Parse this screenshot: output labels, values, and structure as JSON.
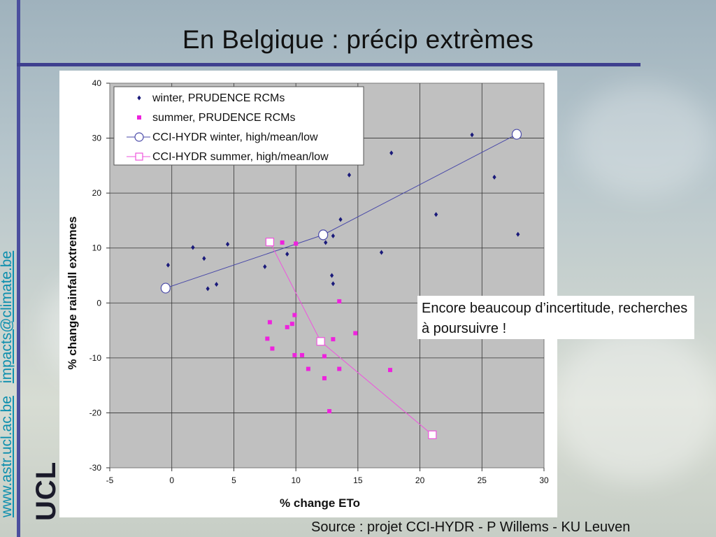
{
  "slide": {
    "title": "En Belgique : précip extrèmes",
    "side_link_1": "www.astr.ucl.ac.be",
    "side_link_2": "impacts@climate.be",
    "logo_text": "UCL",
    "note": "Encore beaucoup d’incertitude, recherches à poursuivre !",
    "source": "Source : projet CCI-HYDR - P Willems - KU Leuven"
  },
  "chart_data": {
    "type": "scatter",
    "xlabel": "% change ETo",
    "ylabel": "% change rainfall extremes",
    "xlim": [
      -5,
      30
    ],
    "ylim": [
      -30,
      40
    ],
    "xticks": [
      -5,
      0,
      5,
      10,
      15,
      20,
      25,
      30
    ],
    "yticks": [
      -30,
      -20,
      -10,
      0,
      10,
      20,
      30,
      40
    ],
    "grid": true,
    "legend_position": "top-left",
    "series": [
      {
        "name": "winter, PRUDENCE RCMs",
        "kind": "points",
        "marker": "diamond",
        "color": "#1a1a7a",
        "points": [
          [
            -0.3,
            6.9
          ],
          [
            1.7,
            10.1
          ],
          [
            2.6,
            8.1
          ],
          [
            2.9,
            2.6
          ],
          [
            3.6,
            3.4
          ],
          [
            4.5,
            10.7
          ],
          [
            7.5,
            6.6
          ],
          [
            9.3,
            8.9
          ],
          [
            12.4,
            11.0
          ],
          [
            12.9,
            5.0
          ],
          [
            13.0,
            3.5
          ],
          [
            13.0,
            12.2
          ],
          [
            13.6,
            15.2
          ],
          [
            14.3,
            23.3
          ],
          [
            16.9,
            9.2
          ],
          [
            17.7,
            27.3
          ],
          [
            21.3,
            16.1
          ],
          [
            24.2,
            30.6
          ],
          [
            26.0,
            22.9
          ],
          [
            27.9,
            12.5
          ]
        ]
      },
      {
        "name": "summer, PRUDENCE RCMs",
        "kind": "points",
        "marker": "square",
        "color": "#ee22dd",
        "points": [
          [
            7.7,
            -6.5
          ],
          [
            7.9,
            -3.5
          ],
          [
            8.1,
            -8.3
          ],
          [
            8.9,
            11.0
          ],
          [
            9.3,
            -4.4
          ],
          [
            9.7,
            -3.8
          ],
          [
            9.9,
            -2.2
          ],
          [
            9.9,
            -9.5
          ],
          [
            10.0,
            10.8
          ],
          [
            10.5,
            -9.5
          ],
          [
            11.0,
            -12.0
          ],
          [
            12.3,
            -9.7
          ],
          [
            12.3,
            -13.7
          ],
          [
            12.7,
            -19.7
          ],
          [
            13.0,
            -6.6
          ],
          [
            13.5,
            0.3
          ],
          [
            13.5,
            -12.0
          ],
          [
            14.8,
            -5.5
          ],
          [
            17.6,
            -12.2
          ]
        ]
      },
      {
        "name": "CCI-HYDR winter, high/mean/low",
        "kind": "line-marker",
        "marker": "circle",
        "color": "#4a4aa8",
        "points": [
          [
            -0.5,
            2.7
          ],
          [
            12.2,
            12.4
          ],
          [
            27.8,
            30.7
          ]
        ]
      },
      {
        "name": "CCI-HYDR summer, high/mean/low",
        "kind": "line-marker",
        "marker": "square",
        "color": "#ee55dd",
        "points": [
          [
            7.9,
            11.1
          ],
          [
            12.0,
            -7.0
          ],
          [
            21.0,
            -24.0
          ]
        ]
      }
    ]
  }
}
